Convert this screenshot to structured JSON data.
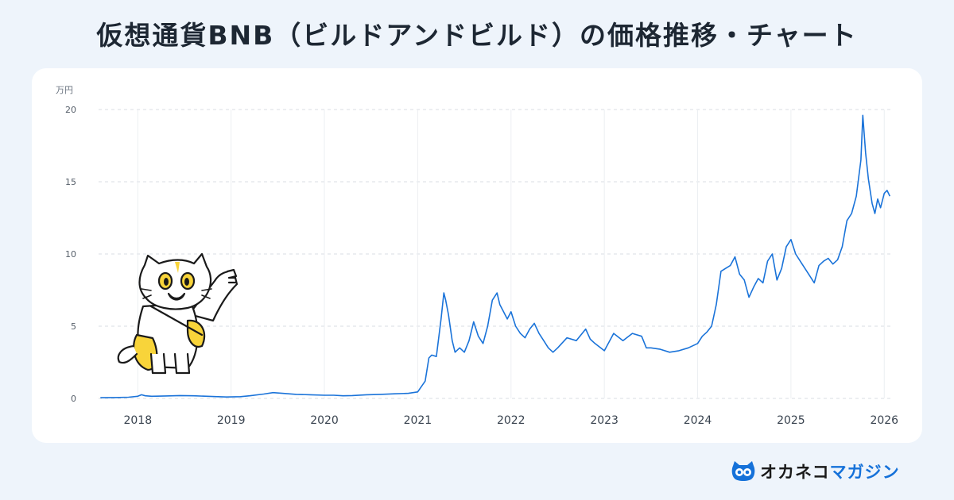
{
  "title": "仮想通貨BNB（ビルドアンドビルド）の価格推移・チャート",
  "logo": {
    "part1": "オカネコ",
    "part2": "マガジン"
  },
  "colors": {
    "line": "#1a73d9",
    "background": "#eef4fb",
    "grid": "#d8dde3",
    "accent_yellow": "#f8d43a"
  },
  "mascot": {
    "icon": "maneki-neko-cat-icon"
  },
  "chart_data": {
    "type": "line",
    "title": "仮想通貨BNB（ビルドアンドビルド）の価格推移・チャート",
    "ylabel": "万円",
    "xlabel": "",
    "ylim": [
      0,
      20
    ],
    "xlim": [
      2017.58,
      2026.1
    ],
    "yticks": [
      0,
      5,
      10,
      15,
      20
    ],
    "xticks": [
      "2018",
      "2019",
      "2020",
      "2021",
      "2022",
      "2023",
      "2024",
      "2025",
      "2026"
    ],
    "grid": true,
    "series": [
      {
        "x": [
          2017.6,
          2017.75,
          2017.9,
          2018.0,
          2018.04,
          2018.08,
          2018.15,
          2018.3,
          2018.45,
          2018.6,
          2018.8,
          2018.95,
          2019.1,
          2019.2,
          2019.35,
          2019.45,
          2019.55,
          2019.7,
          2019.85,
          2020.0,
          2020.1,
          2020.2,
          2020.3,
          2020.45,
          2020.6,
          2020.75,
          2020.9,
          2021.0,
          2021.08,
          2021.12,
          2021.15,
          2021.2,
          2021.25,
          2021.28,
          2021.3,
          2021.33,
          2021.37,
          2021.4,
          2021.45,
          2021.5,
          2021.55,
          2021.6,
          2021.65,
          2021.7,
          2021.75,
          2021.8,
          2021.85,
          2021.88,
          2021.92,
          2021.96,
          2022.0,
          2022.05,
          2022.1,
          2022.15,
          2022.2,
          2022.25,
          2022.3,
          2022.35,
          2022.4,
          2022.45,
          2022.5,
          2022.6,
          2022.7,
          2022.8,
          2022.85,
          2022.9,
          2023.0,
          2023.1,
          2023.2,
          2023.3,
          2023.4,
          2023.45,
          2023.5,
          2023.6,
          2023.7,
          2023.8,
          2023.9,
          2024.0,
          2024.05,
          2024.1,
          2024.15,
          2024.2,
          2024.25,
          2024.3,
          2024.35,
          2024.4,
          2024.45,
          2024.5,
          2024.55,
          2024.6,
          2024.65,
          2024.7,
          2024.75,
          2024.8,
          2024.85,
          2024.9,
          2024.95,
          2025.0,
          2025.05,
          2025.1,
          2025.15,
          2025.2,
          2025.25,
          2025.3,
          2025.35,
          2025.4,
          2025.45,
          2025.5,
          2025.55,
          2025.6,
          2025.65,
          2025.7,
          2025.75,
          2025.77,
          2025.8,
          2025.83,
          2025.87,
          2025.9,
          2025.93,
          2025.96,
          2026.0,
          2026.03,
          2026.06
        ],
        "values": [
          0.05,
          0.06,
          0.08,
          0.15,
          0.25,
          0.18,
          0.15,
          0.17,
          0.2,
          0.18,
          0.13,
          0.1,
          0.12,
          0.18,
          0.3,
          0.4,
          0.35,
          0.28,
          0.25,
          0.22,
          0.22,
          0.18,
          0.2,
          0.25,
          0.28,
          0.32,
          0.35,
          0.45,
          1.2,
          2.8,
          3.0,
          2.9,
          5.5,
          7.3,
          6.8,
          5.8,
          4.0,
          3.2,
          3.5,
          3.2,
          4.0,
          5.3,
          4.3,
          3.8,
          5.0,
          6.8,
          7.3,
          6.5,
          6.0,
          5.5,
          6.0,
          5.0,
          4.5,
          4.2,
          4.8,
          5.2,
          4.5,
          4.0,
          3.5,
          3.2,
          3.5,
          4.2,
          4.0,
          4.8,
          4.1,
          3.8,
          3.3,
          4.5,
          4.0,
          4.5,
          4.3,
          3.5,
          3.5,
          3.4,
          3.2,
          3.3,
          3.5,
          3.8,
          4.3,
          4.6,
          5.0,
          6.5,
          8.8,
          9.0,
          9.2,
          9.8,
          8.6,
          8.2,
          7.0,
          7.7,
          8.3,
          8.0,
          9.5,
          10.0,
          8.2,
          9.0,
          10.5,
          11.0,
          10.0,
          9.5,
          9.0,
          8.5,
          8.0,
          9.2,
          9.5,
          9.7,
          9.3,
          9.6,
          10.5,
          12.3,
          12.8,
          14.0,
          16.5,
          19.6,
          17.0,
          15.2,
          13.5,
          12.8,
          13.8,
          13.2,
          14.2,
          14.4,
          14.0
        ]
      }
    ]
  }
}
